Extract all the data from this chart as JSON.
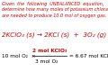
{
  "bg_color": "#ffffff",
  "header_text": "Given  the  following  UNBALANCED  equation,\ndetermine how many moles of potassium chlorate\nare needed to produce 10.0 mol of oxygen gas.",
  "equation": "2KClO₃ (s) → 2KCl (s)  +  3O₂ (g)",
  "calc_prefix": "10 mol O₂  ×  ",
  "fraction_top": "2 mol KClO₃",
  "fraction_bot": "3 mol O₂",
  "calc_suffix": " = 6.67 mol KClO₃",
  "header_color": "#cc0000",
  "eq_color": "#cc0000",
  "calc_color": "#000000",
  "frac_top_color": "#cc0000",
  "frac_bot_color": "#000000",
  "header_fontsize": 3.5,
  "eq_fontsize": 5.2,
  "calc_fontsize": 4.2
}
